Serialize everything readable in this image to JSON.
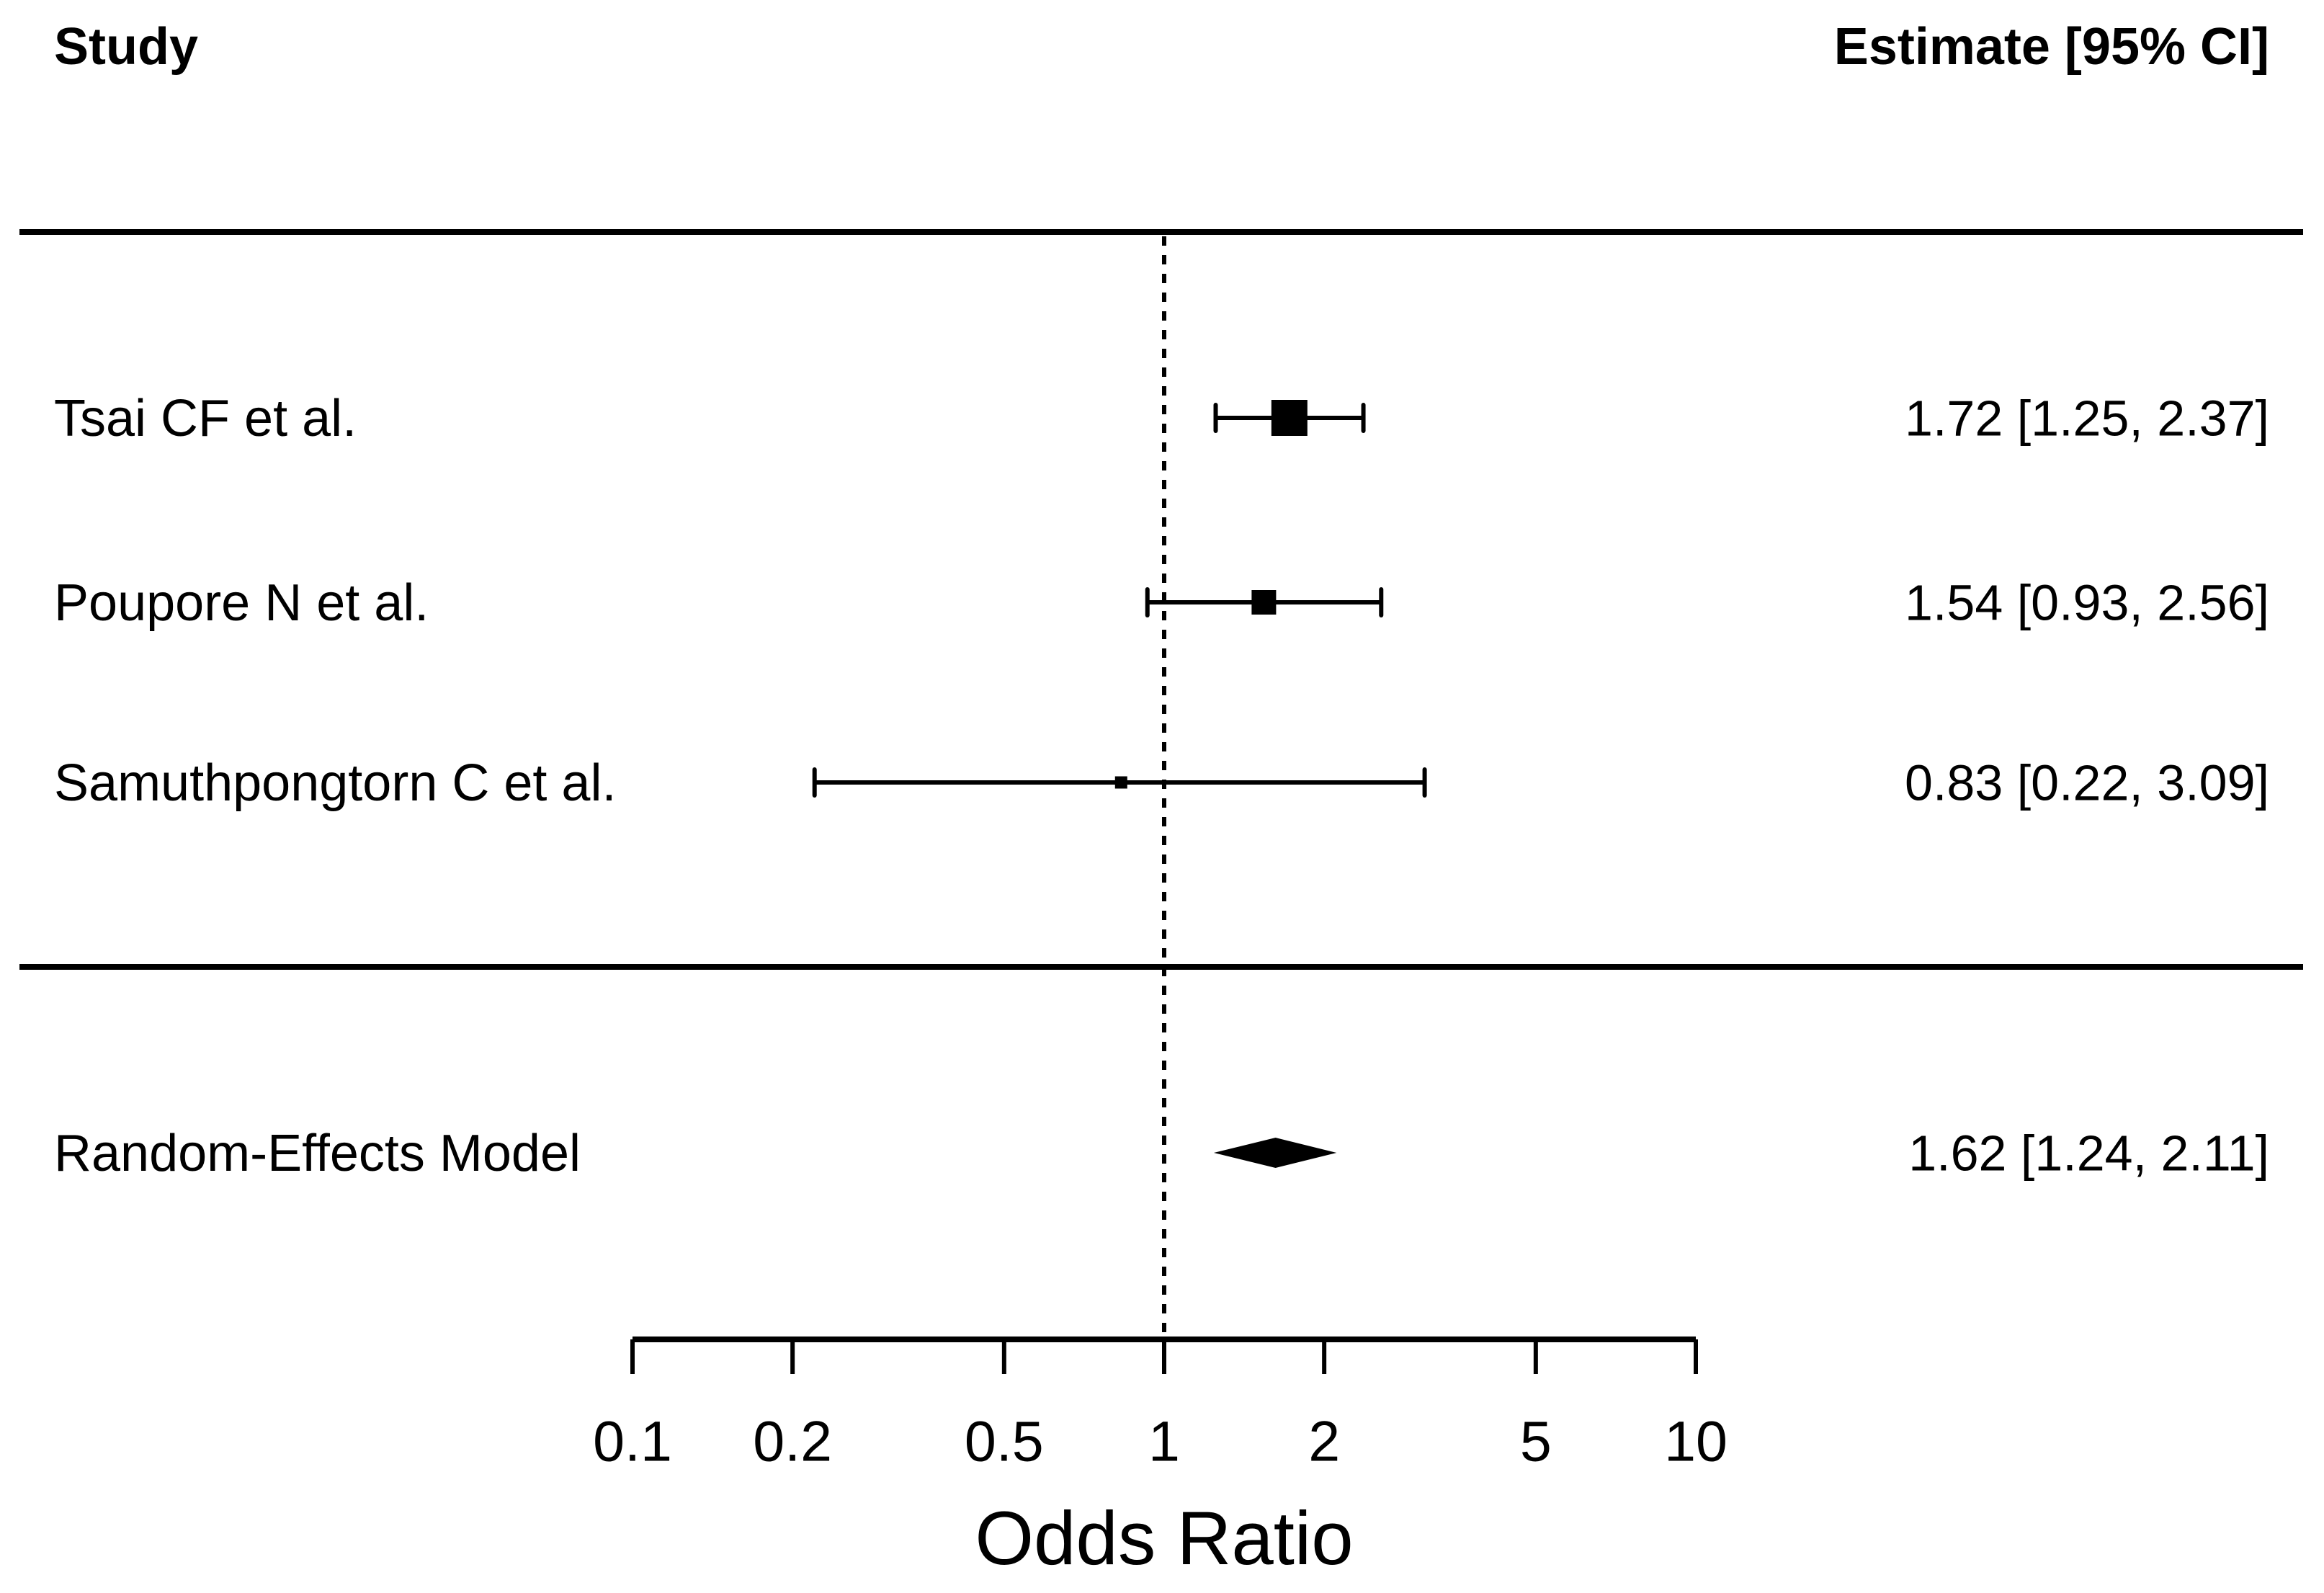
{
  "chart_data": {
    "type": "forest",
    "xlabel": "Odds Ratio",
    "x_scale": "log10",
    "x_range": [
      0.1,
      10
    ],
    "grid": false,
    "columns": {
      "study": "Study",
      "estimate": "Estimate [95% CI]"
    },
    "x_ticks": [
      {
        "value": 0.1,
        "label": "0.1"
      },
      {
        "value": 0.2,
        "label": "0.2"
      },
      {
        "value": 0.5,
        "label": "0.5"
      },
      {
        "value": 1,
        "label": "1"
      },
      {
        "value": 2,
        "label": "2"
      },
      {
        "value": 5,
        "label": "5"
      },
      {
        "value": 10,
        "label": "10"
      }
    ],
    "reference_value": 1,
    "studies": [
      {
        "label": "Tsai CF et al.",
        "estimate": 1.72,
        "ci_low": 1.25,
        "ci_high": 2.37,
        "annotation": "1.72 [1.25, 2.37]",
        "marker_size_px": 50
      },
      {
        "label": "Poupore N et al.",
        "estimate": 1.54,
        "ci_low": 0.93,
        "ci_high": 2.56,
        "annotation": "1.54 [0.93, 2.56]",
        "marker_size_px": 34
      },
      {
        "label": "Samuthpongtorn C et al.",
        "estimate": 0.83,
        "ci_low": 0.22,
        "ci_high": 3.09,
        "annotation": "0.83 [0.22, 3.09]",
        "marker_size_px": 17
      }
    ],
    "summary": {
      "label": "Random-Effects Model",
      "estimate": 1.62,
      "ci_low": 1.24,
      "ci_high": 2.11,
      "annotation": "1.62 [1.24, 2.11]",
      "shape": "diamond"
    },
    "colors": {
      "foreground": "#000000",
      "background": "#ffffff"
    }
  }
}
